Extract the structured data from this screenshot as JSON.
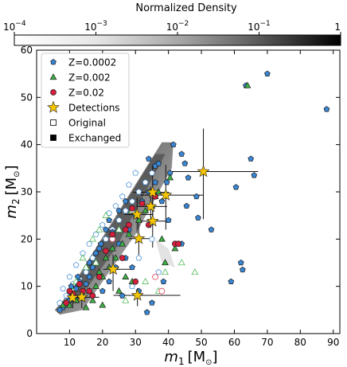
{
  "chart_data": {
    "type": "scatter",
    "colorbar": {
      "label": "Normalized Density",
      "scale": "log",
      "range": [
        0.0001,
        1
      ],
      "colormap": "Greys",
      "ticks": [
        {
          "value": 0.0001,
          "base": "10",
          "exp": "−4"
        },
        {
          "value": 0.001,
          "base": "10",
          "exp": "−3"
        },
        {
          "value": 0.01,
          "base": "10",
          "exp": "−2"
        },
        {
          "value": 0.1,
          "base": "10",
          "exp": "−1"
        },
        {
          "value": 1,
          "base": "1",
          "exp": ""
        }
      ]
    },
    "x_axis": {
      "label_main": "m",
      "label_sub": "1",
      "label_unit": "[M",
      "label_sun": "⊙",
      "label_close": "]",
      "range": [
        0,
        92
      ],
      "ticks": [
        10,
        20,
        30,
        40,
        50,
        60,
        70,
        80,
        90
      ],
      "tick_labels": [
        "10",
        "20",
        "30",
        "40",
        "50",
        "60",
        "70",
        "80",
        "90"
      ]
    },
    "y_axis": {
      "label_main": "m",
      "label_sub": "2",
      "label_unit": "[M",
      "label_sun": "⊙",
      "label_close": "]",
      "range": [
        0,
        60
      ],
      "ticks": [
        0,
        10,
        20,
        30,
        40,
        50,
        60
      ],
      "tick_labels": [
        "0",
        "10",
        "20",
        "30",
        "40",
        "50",
        "60"
      ]
    },
    "legend": {
      "position": "upper-left",
      "entries": [
        {
          "label": "Z=0.0002",
          "marker": "pentagon",
          "color": "#3a86d4"
        },
        {
          "label": "Z=0.002",
          "marker": "triangle",
          "color": "#3cb043"
        },
        {
          "label": "Z=0.02",
          "marker": "circle",
          "color": "#d61f3c"
        },
        {
          "label": "Detections",
          "marker": "star",
          "color": "#f5c400"
        },
        {
          "label": "Original",
          "marker": "square-open",
          "color": "#000000"
        },
        {
          "label": "Exchanged",
          "marker": "square-filled",
          "color": "#000000"
        }
      ]
    },
    "series": [
      {
        "name": "Z=0.0002",
        "marker": "pentagon",
        "color": "#3a86d4",
        "points_exchanged": [
          [
            88,
            47.5
          ],
          [
            70,
            55
          ],
          [
            63.5,
            52.5
          ],
          [
            65,
            37
          ],
          [
            66,
            33.5
          ],
          [
            60.5,
            31
          ],
          [
            62,
            15
          ],
          [
            62.5,
            13.5
          ],
          [
            59,
            11
          ],
          [
            53,
            22
          ],
          [
            49,
            24.5
          ],
          [
            48.5,
            29
          ],
          [
            46,
            33
          ],
          [
            45,
            36
          ],
          [
            44,
            38
          ],
          [
            41.5,
            40
          ],
          [
            40.5,
            34
          ],
          [
            39.5,
            32
          ],
          [
            42,
            19
          ],
          [
            40,
            24
          ],
          [
            38,
            28
          ],
          [
            36,
            35.5
          ],
          [
            34,
            37
          ],
          [
            45.5,
            27
          ],
          [
            44,
            19
          ],
          [
            38.5,
            11
          ],
          [
            35,
            6.5
          ],
          [
            33.5,
            4.5
          ],
          [
            31,
            9
          ],
          [
            29,
            14
          ],
          [
            27,
            16
          ],
          [
            25,
            19
          ],
          [
            23,
            21.5
          ],
          [
            21,
            22
          ],
          [
            19.5,
            19
          ],
          [
            18,
            17
          ],
          [
            17,
            14
          ],
          [
            16,
            12
          ],
          [
            15,
            10.5
          ],
          [
            14,
            9
          ],
          [
            13,
            11
          ],
          [
            12,
            9.5
          ],
          [
            11,
            8
          ],
          [
            10,
            7
          ],
          [
            9,
            6.5
          ],
          [
            8,
            5.5
          ],
          [
            7,
            5
          ],
          [
            24,
            14
          ],
          [
            22,
            11
          ],
          [
            20,
            9
          ],
          [
            26,
            8
          ],
          [
            28,
            22
          ],
          [
            30,
            25
          ],
          [
            32,
            28
          ],
          [
            34,
            30
          ],
          [
            36,
            32
          ],
          [
            37,
            36
          ],
          [
            25,
            26
          ],
          [
            27,
            28
          ],
          [
            22,
            24
          ],
          [
            19,
            18
          ],
          [
            16,
            15
          ],
          [
            12.5,
            12
          ],
          [
            10.5,
            10
          ]
        ],
        "points_original": [
          [
            30,
            34
          ],
          [
            28,
            31.5
          ],
          [
            26,
            29
          ],
          [
            24,
            27
          ],
          [
            22,
            25.5
          ],
          [
            20,
            23
          ],
          [
            18,
            21
          ],
          [
            16,
            19
          ],
          [
            14,
            17
          ],
          [
            12,
            14.5
          ],
          [
            10,
            12
          ],
          [
            8,
            9.5
          ],
          [
            17,
            16
          ],
          [
            15,
            13
          ],
          [
            13,
            11.5
          ],
          [
            11,
            10.5
          ],
          [
            9,
            8
          ],
          [
            7,
            6.5
          ],
          [
            19,
            18
          ],
          [
            21,
            20
          ],
          [
            23,
            22
          ],
          [
            25,
            24
          ],
          [
            27,
            26
          ],
          [
            29,
            28
          ],
          [
            31,
            30
          ],
          [
            33,
            32
          ],
          [
            35,
            34
          ],
          [
            29,
            10
          ],
          [
            37,
            13
          ],
          [
            31,
            16
          ],
          [
            35,
            20
          ]
        ]
      },
      {
        "name": "Z=0.002",
        "marker": "triangle",
        "color": "#3cb043",
        "points_exchanged": [
          [
            64,
            52.5
          ],
          [
            40.5,
            33
          ],
          [
            36,
            29
          ],
          [
            33,
            26
          ],
          [
            31,
            24
          ],
          [
            28,
            21
          ],
          [
            26,
            19
          ],
          [
            24,
            16
          ],
          [
            22,
            14
          ],
          [
            20,
            12
          ],
          [
            18,
            10
          ],
          [
            16,
            9
          ],
          [
            14,
            8
          ],
          [
            12,
            7
          ],
          [
            10,
            6
          ],
          [
            8,
            6
          ],
          [
            25,
            9
          ],
          [
            27,
            12
          ],
          [
            29,
            11
          ],
          [
            38,
            20
          ],
          [
            42,
            18
          ],
          [
            39,
            15
          ],
          [
            20,
            6
          ],
          [
            17,
            7
          ],
          [
            15,
            5.5
          ],
          [
            23,
            18
          ],
          [
            21,
            16
          ],
          [
            19,
            13
          ],
          [
            37,
            30
          ],
          [
            35,
            27
          ]
        ],
        "points_original": [
          [
            44,
            15
          ],
          [
            48,
            13
          ],
          [
            39,
            13
          ],
          [
            37,
            9
          ],
          [
            33,
            11
          ],
          [
            27,
            7
          ],
          [
            18,
            15
          ],
          [
            15,
            14
          ],
          [
            12,
            11
          ],
          [
            19,
            22
          ],
          [
            21,
            25
          ],
          [
            17,
            20
          ],
          [
            14,
            16
          ],
          [
            11,
            9
          ],
          [
            25,
            22
          ],
          [
            29,
            26
          ]
        ]
      },
      {
        "name": "Z=0.02",
        "marker": "circle",
        "color": "#d61f3c",
        "points_exchanged": [
          [
            42,
            19
          ],
          [
            43,
            19
          ],
          [
            36,
            29
          ],
          [
            32,
            27.5
          ],
          [
            29,
            26.5
          ],
          [
            27,
            22
          ],
          [
            23,
            21
          ],
          [
            21,
            17.5
          ],
          [
            26,
            16
          ],
          [
            19,
            12
          ],
          [
            16,
            9
          ],
          [
            17,
            8
          ],
          [
            14,
            9
          ],
          [
            13,
            10.5
          ],
          [
            11,
            8.5
          ],
          [
            10,
            9
          ],
          [
            9,
            6.5
          ],
          [
            31,
            20
          ],
          [
            34,
            23
          ],
          [
            30,
            11
          ],
          [
            28,
            23
          ]
        ],
        "points_original": [
          [
            38,
            9
          ],
          [
            36,
            12
          ],
          [
            23,
            20
          ]
        ]
      },
      {
        "name": "Detections",
        "marker": "star",
        "color": "#f5c400",
        "points": [
          {
            "x": 50.6,
            "y": 34.3,
            "xerr": [
              10.1,
              16.6
            ],
            "yerr": [
              10.1,
              9.1
            ]
          },
          {
            "x": 35.2,
            "y": 29.9,
            "xerr": [
              6.0,
              5.0
            ],
            "yerr": [
              7.0,
              5.7
            ]
          },
          {
            "x": 39.2,
            "y": 29.3,
            "xerr": [
              7.6,
              11.5
            ],
            "yerr": [
              7.3,
              6.4
            ]
          },
          {
            "x": 34.6,
            "y": 26.9,
            "xerr": [
              4.3,
              5.0
            ],
            "yerr": [
              4.5,
              4.2
            ]
          },
          {
            "x": 30.5,
            "y": 25.2,
            "xerr": [
              3.9,
              4.9
            ],
            "yerr": [
              4.0,
              3.6
            ]
          },
          {
            "x": 35.2,
            "y": 23.8,
            "xerr": [
              4.4,
              5.5
            ],
            "yerr": [
              5.6,
              4.6
            ]
          },
          {
            "x": 31.0,
            "y": 20.1,
            "xerr": [
              3.0,
              4.4
            ],
            "yerr": [
              4.1,
              3.3
            ]
          },
          {
            "x": 23.2,
            "y": 13.6,
            "xerr": [
              3.0,
              5.3
            ],
            "yerr": [
              4.6,
              3.1
            ]
          },
          {
            "x": 30.6,
            "y": 8.1,
            "xerr": [
              7.3,
              13.0
            ],
            "yerr": [
              2.3,
              1.5
            ]
          },
          {
            "x": 13.7,
            "y": 7.7,
            "xerr": [
              1.8,
              5.3
            ],
            "yerr": [
              2.3,
              1.4
            ]
          },
          {
            "x": 10.9,
            "y": 7.6,
            "xerr": [
              0.7,
              4.2
            ],
            "yerr": [
              2.2,
              0.9
            ]
          }
        ]
      }
    ]
  }
}
